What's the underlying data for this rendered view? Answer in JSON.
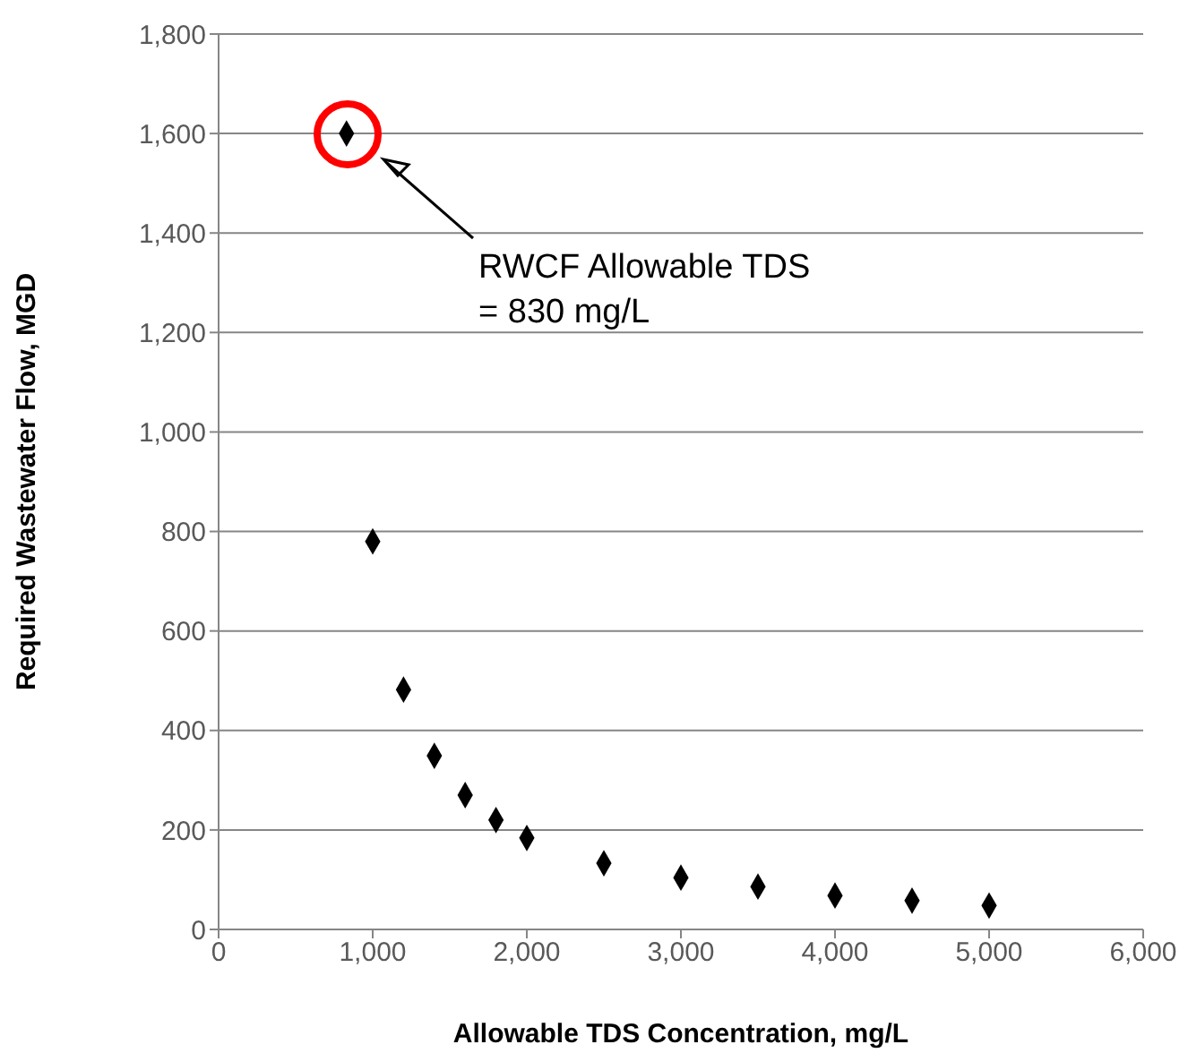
{
  "chart_data": {
    "type": "scatter",
    "xlabel": "Allowable  TDS Concentration, mg/L",
    "ylabel": "Required Wastewater Flow,  MGD",
    "x": [
      830,
      1000,
      1200,
      1400,
      1600,
      1800,
      2000,
      2500,
      3000,
      3500,
      4000,
      4500,
      5000
    ],
    "series": [
      {
        "color": "#000000",
        "values": [
          1600,
          780,
          482,
          349,
          270,
          220,
          184,
          133,
          104,
          86,
          68,
          58,
          48
        ]
      }
    ],
    "xlim": [
      0,
      6000
    ],
    "xticks": [
      {
        "value": 0,
        "label": "0"
      },
      {
        "value": 1000,
        "label": "1,000"
      },
      {
        "value": 2000,
        "label": "2,000"
      },
      {
        "value": 3000,
        "label": "3,000"
      },
      {
        "value": 4000,
        "label": "4,000"
      },
      {
        "value": 5000,
        "label": "5,000"
      },
      {
        "value": 6000,
        "label": "6,000"
      }
    ],
    "ylim": [
      0,
      1800
    ],
    "yticks": [
      {
        "value": 0,
        "label": "0"
      },
      {
        "value": 200,
        "label": "200"
      },
      {
        "value": 400,
        "label": "400"
      },
      {
        "value": 600,
        "label": "600"
      },
      {
        "value": 800,
        "label": "800"
      },
      {
        "value": 1000,
        "label": "1,000"
      },
      {
        "value": 1200,
        "label": "1,200"
      },
      {
        "value": 1400,
        "label": "1,400"
      },
      {
        "value": 1600,
        "label": "1,600"
      },
      {
        "value": 1800,
        "label": "1,800"
      }
    ],
    "annotations": [
      "RWCF Allowable TDS\n= 830 mg/L"
    ],
    "grid": "y",
    "legend": false,
    "marker": "diamond"
  }
}
